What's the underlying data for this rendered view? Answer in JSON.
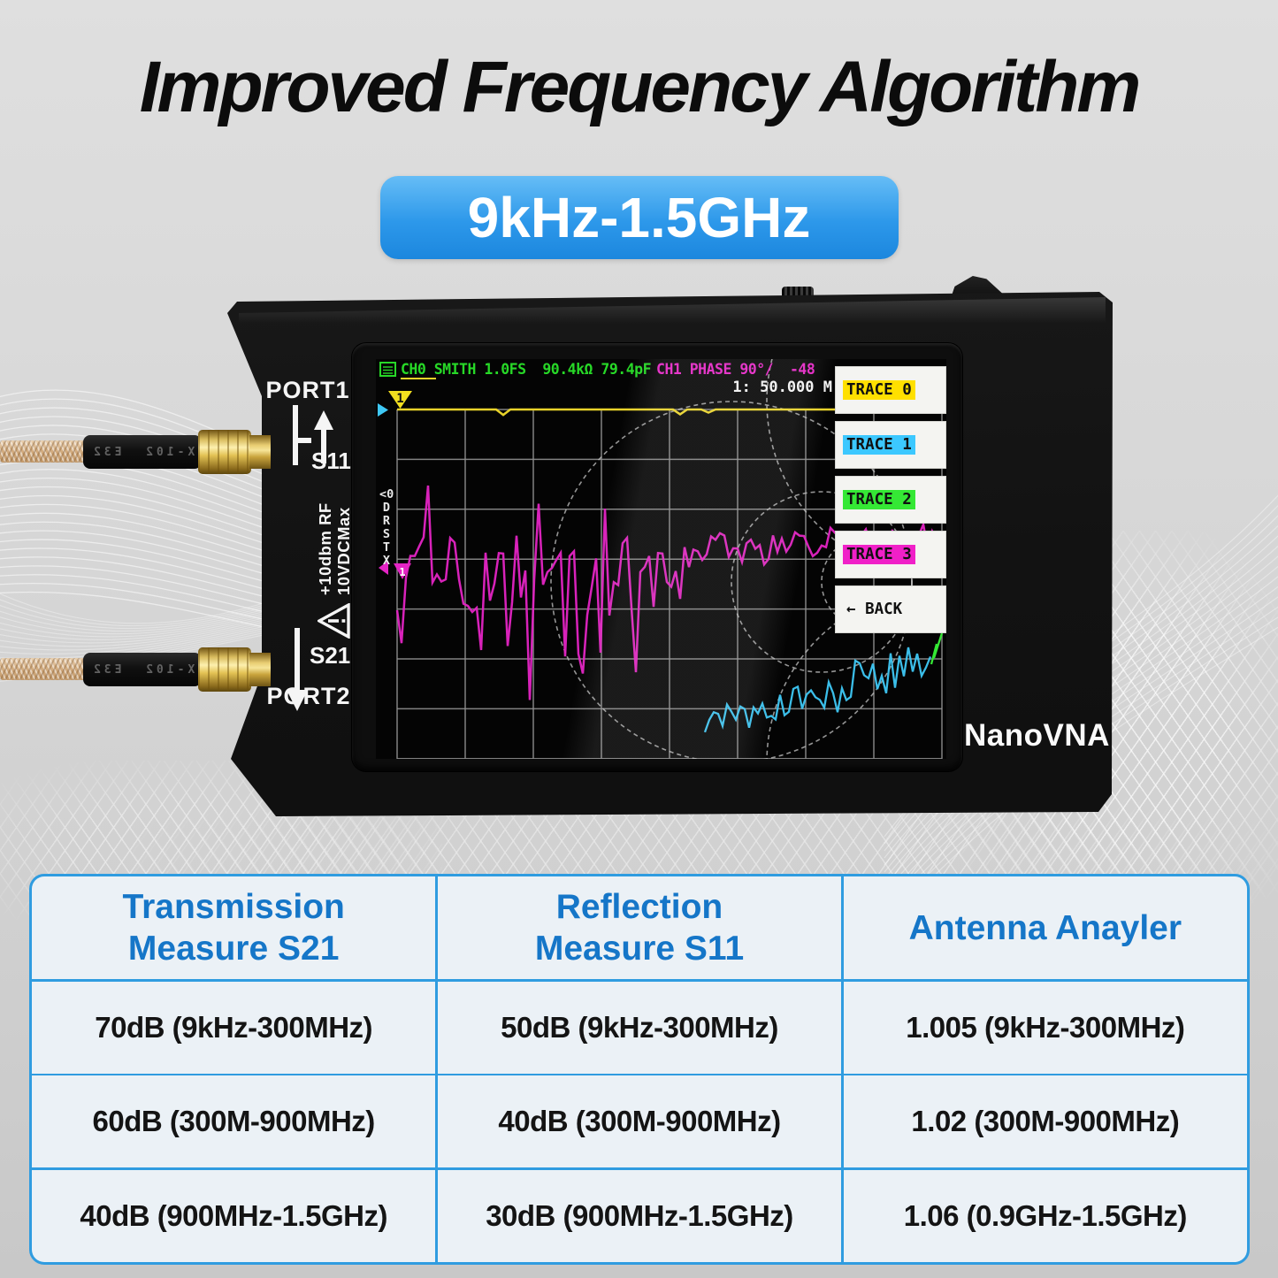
{
  "title": "Improved Frequency Algorithm",
  "badge": {
    "label": "9kHz-1.5GHz",
    "color_top": "#66bdf6",
    "color_bottom": "#1c87de"
  },
  "device": {
    "brand": "NanoVNA",
    "labels": {
      "port1": "PORT1",
      "s11": "S11",
      "s21": "S21",
      "port2": "PORT2",
      "rf_warning": "+10dbm RF\n10VDCMax"
    },
    "cable_marking": "X-102  E32",
    "screen": {
      "status_ch0": "CH0 SMITH 1.0FS  90.4kΩ 79.4pF",
      "status_ch1": "CH1 PHASE 90°/  -48",
      "status_line2": "1: 50.000 M",
      "side_markers": "<0\nD\nR\nS\nT\nX",
      "trace_colors": {
        "yellow": "#e8d22a",
        "magenta": "#e424c4",
        "cyan": "#3ec8f5",
        "green": "#27d827"
      },
      "menu": [
        {
          "label": "TRACE 0",
          "highlight": "#ffe000"
        },
        {
          "label": "TRACE 1",
          "highlight": "#3cc8ff"
        },
        {
          "label": "TRACE 2",
          "highlight": "#35e835"
        },
        {
          "label": "TRACE 3",
          "highlight": "#f020c8"
        },
        {
          "label": "← BACK",
          "highlight": null
        }
      ]
    }
  },
  "table": {
    "border_color": "#2f9ce0",
    "header_color": "#1576c8",
    "headers": [
      "Transmission\nMeasure S21",
      "Reflection\nMeasure S11",
      "Antenna Anayler"
    ],
    "rows": [
      [
        "70dB (9kHz-300MHz)",
        "50dB (9kHz-300MHz)",
        "1.005 (9kHz-300MHz)"
      ],
      [
        "60dB (300M-900MHz)",
        "40dB (300M-900MHz)",
        "1.02 (300M-900MHz)"
      ],
      [
        "40dB (900MHz-1.5GHz)",
        "30dB (900MHz-1.5GHz)",
        "1.06 (0.9GHz-1.5GHz)"
      ]
    ]
  }
}
